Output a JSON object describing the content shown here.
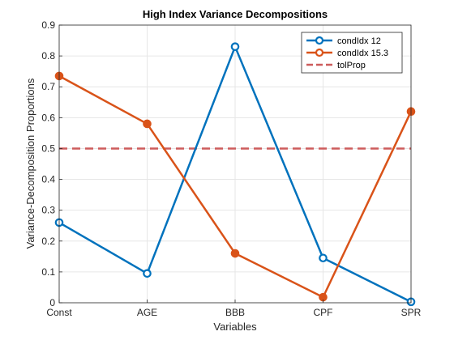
{
  "chart_data": {
    "type": "line",
    "title": "High Index Variance Decompositions",
    "xlabel": "Variables",
    "ylabel": "Variance-Decomposition Proportions",
    "categories": [
      "Const",
      "AGE",
      "BBB",
      "CPF",
      "SPR"
    ],
    "ylim": [
      0,
      0.9
    ],
    "yticks": [
      0,
      0.1,
      0.2,
      0.3,
      0.4,
      0.5,
      0.6,
      0.7,
      0.8,
      0.9
    ],
    "ytick_labels": [
      "0",
      "0.1",
      "0.2",
      "0.3",
      "0.4",
      "0.5",
      "0.6",
      "0.7",
      "0.8",
      "0.9"
    ],
    "grid": true,
    "legend_position": "top-right",
    "series": [
      {
        "name": "condIdx 12",
        "color": "#0072BD",
        "style": "solid-circle-open",
        "values": [
          0.26,
          0.095,
          0.83,
          0.145,
          0.003
        ]
      },
      {
        "name": "condIdx 15.3",
        "color": "#D95319",
        "style": "solid-circle-filled",
        "values": [
          0.735,
          0.58,
          0.16,
          0.018,
          0.62
        ]
      },
      {
        "name": "tolProp",
        "color": "#CD5C5C",
        "style": "dashed",
        "values": [
          0.5,
          0.5,
          0.5,
          0.5,
          0.5
        ]
      }
    ]
  }
}
